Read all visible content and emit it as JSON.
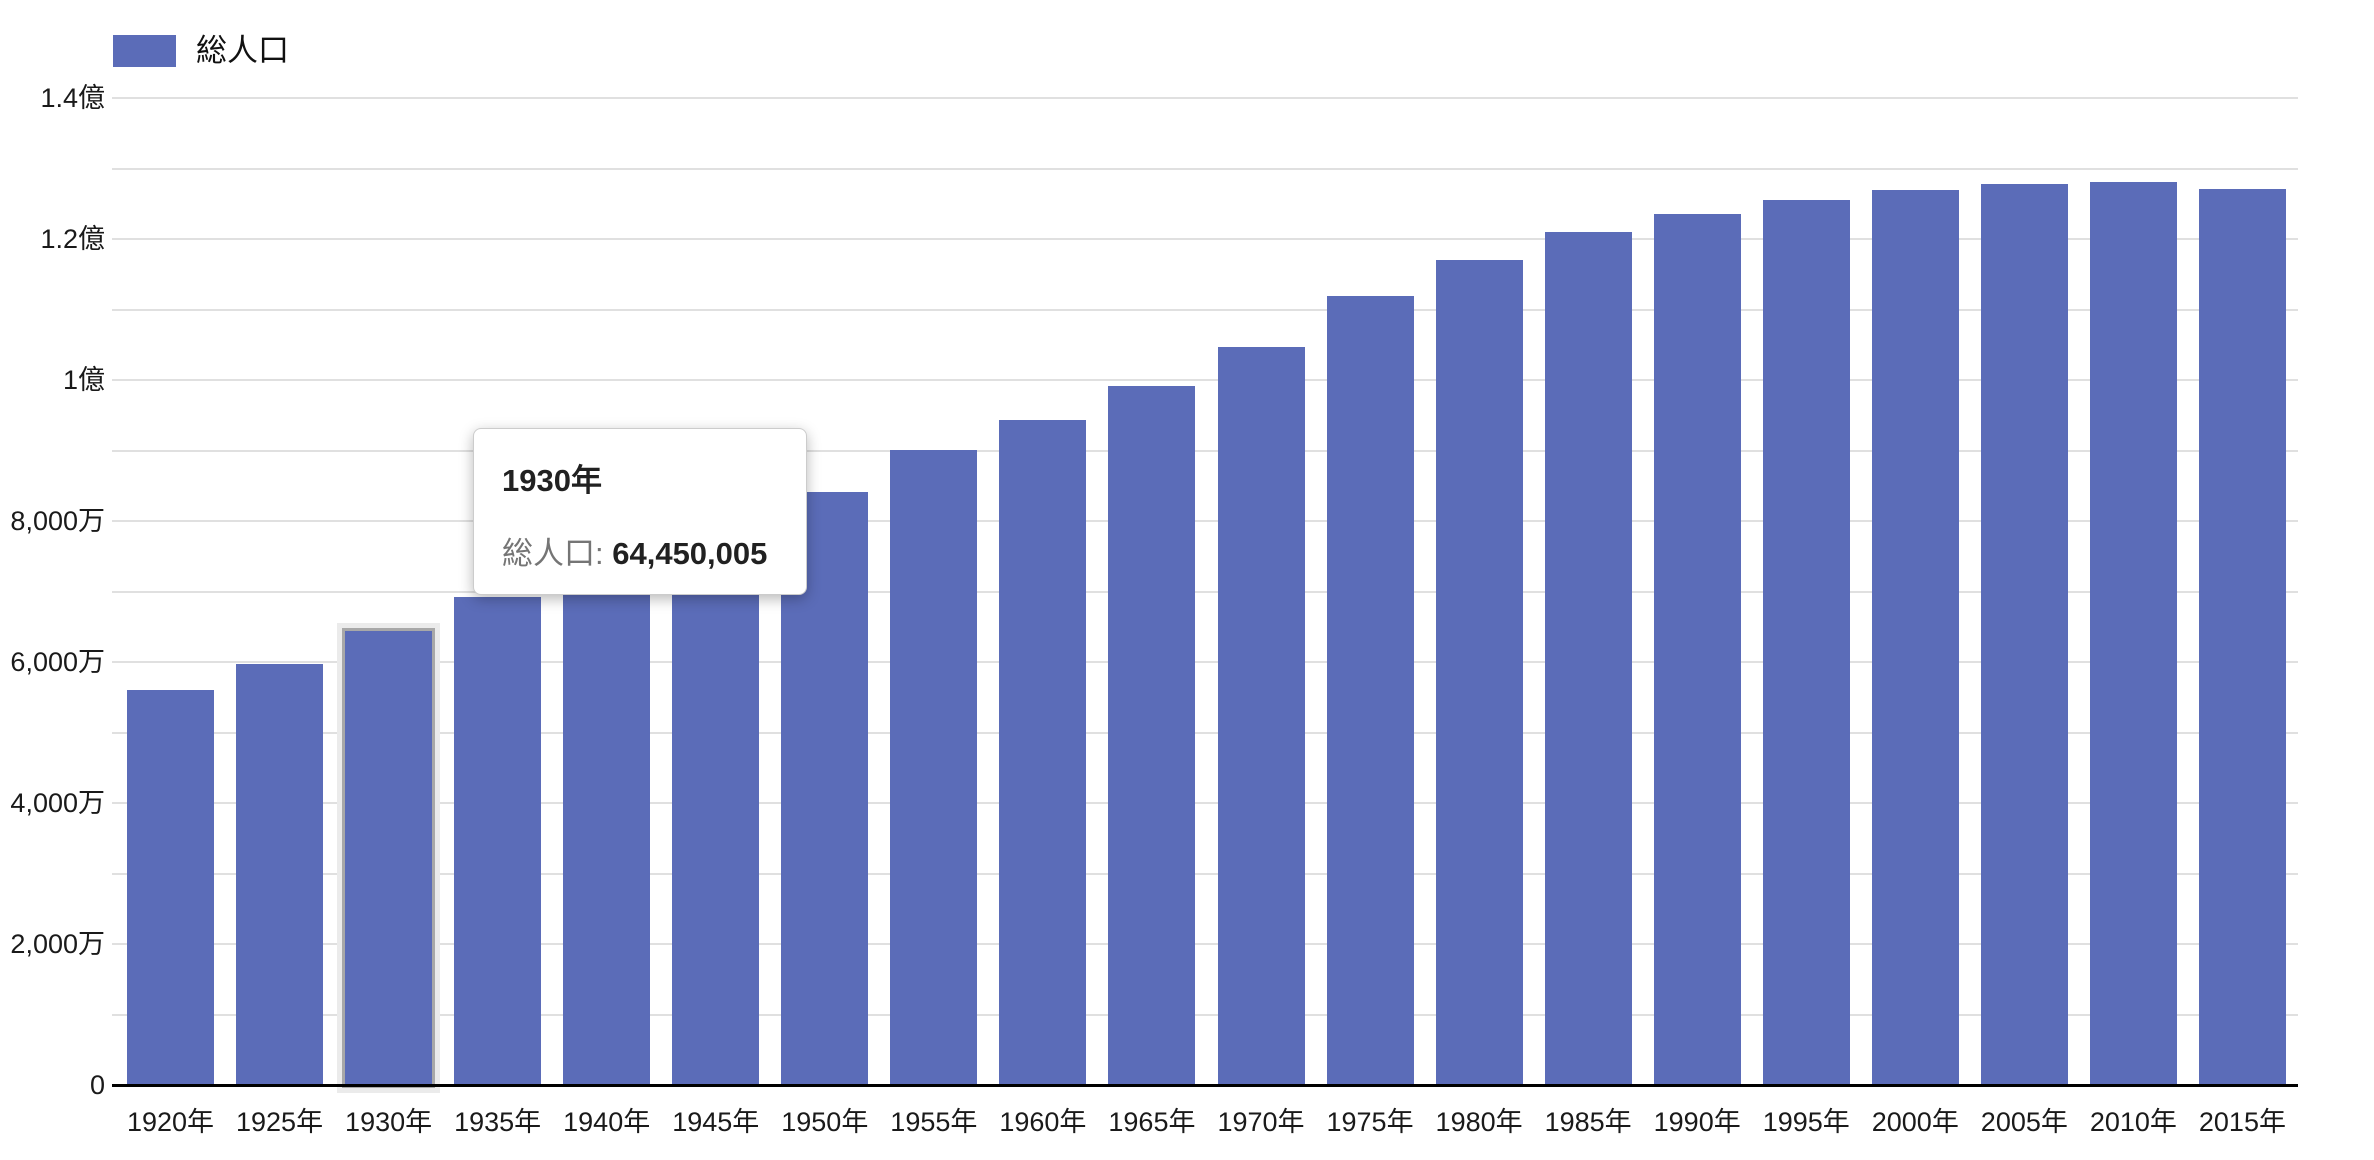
{
  "chart_data": {
    "type": "bar",
    "title": "",
    "xlabel": "",
    "ylabel": "",
    "categories": [
      "1920年",
      "1925年",
      "1930年",
      "1935年",
      "1940年",
      "1945年",
      "1950年",
      "1955年",
      "1960年",
      "1965年",
      "1970年",
      "1975年",
      "1980年",
      "1985年",
      "1990年",
      "1995年",
      "2000年",
      "2005年",
      "2010年",
      "2015年"
    ],
    "series": [
      {
        "name": "総人口",
        "color": "#5b6cb8",
        "values": [
          55963053,
          59736822,
          64450005,
          69254148,
          73075071,
          71998104,
          84114574,
          90076594,
          94301623,
          99209137,
          104665171,
          111939643,
          117060396,
          121048923,
          123611167,
          125570246,
          126925843,
          127767994,
          128057352,
          127094745
        ]
      }
    ],
    "ylim": [
      0,
      140000000
    ],
    "y_ticks": [
      {
        "value": 0,
        "label": "0"
      },
      {
        "value": 20000000,
        "label": "2,000万"
      },
      {
        "value": 40000000,
        "label": "4,000万"
      },
      {
        "value": 60000000,
        "label": "6,000万"
      },
      {
        "value": 80000000,
        "label": "8,000万"
      },
      {
        "value": 100000000,
        "label": "1億"
      },
      {
        "value": 120000000,
        "label": "1.2億"
      },
      {
        "value": 140000000,
        "label": "1.4億"
      }
    ],
    "grid": {
      "visible": true,
      "minor_step": 10000000,
      "color": "#e0e0e0"
    },
    "legend_position": "top-left",
    "highlight": {
      "category_index": 2,
      "category": "1930年"
    }
  },
  "legend": {
    "items": [
      {
        "label": "総人口",
        "color": "#5b6cb8"
      }
    ]
  },
  "tooltip": {
    "title": "1930年",
    "series_label": "総人口",
    "separator": ": ",
    "value": "64,450,005"
  },
  "colors": {
    "bar": "#5b6cb8",
    "bar_highlight_ring": "#a8a8a8",
    "gridline": "#e0e0e0",
    "axis_line": "#000000",
    "tick_label": "#1a1a1a",
    "tooltip_border": "#cccccc",
    "tooltip_label": "#757575",
    "tooltip_strong": "#212121",
    "background": "#ffffff"
  }
}
